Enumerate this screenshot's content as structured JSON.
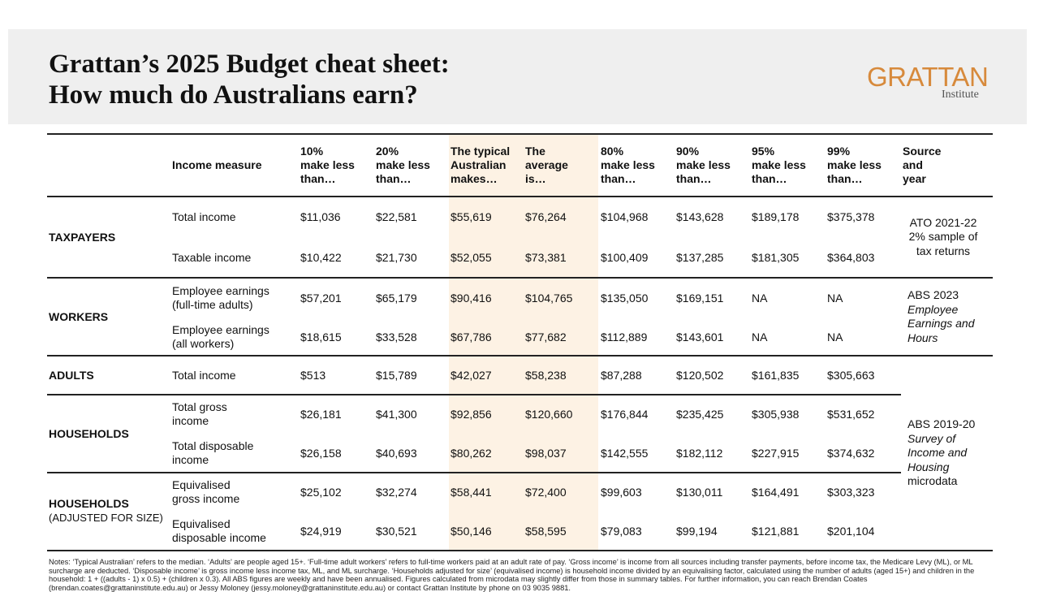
{
  "header": {
    "title_lines": [
      "Grattan’s 2025 Budget cheat sheet:",
      "How much do Australians earn?"
    ],
    "logo": {
      "name": "GRATTAN",
      "sub": "Institute"
    }
  },
  "table": {
    "columns": [
      [
        "Income measure"
      ],
      [
        "10%",
        "make less",
        "than…"
      ],
      [
        "20%",
        "make less",
        "than…"
      ],
      [
        "The typical",
        "Australian",
        "makes…"
      ],
      [
        "The",
        "average",
        "is…"
      ],
      [
        "80%",
        "make less",
        "than…"
      ],
      [
        "90%",
        "make less",
        "than…"
      ],
      [
        "95%",
        "make less",
        "than…"
      ],
      [
        "99%",
        "make less",
        "than…"
      ],
      [
        "Source",
        "and",
        "year"
      ]
    ],
    "groups": [
      {
        "label": [
          "TAXPAYERS"
        ],
        "rows": [
          {
            "measure": [
              "Total income"
            ],
            "values": [
              "$11,036",
              "$22,581",
              "$55,619",
              "$76,264",
              "$104,968",
              "$143,628",
              "$189,178",
              "$375,378"
            ]
          },
          {
            "measure": [
              "Taxable income"
            ],
            "values": [
              "$10,422",
              "$21,730",
              "$52,055",
              "$73,381",
              "$100,409",
              "$137,285",
              "$181,305",
              "$364,803"
            ]
          }
        ]
      },
      {
        "label": [
          "WORKERS"
        ],
        "rows": [
          {
            "measure": [
              "Employee earnings",
              "(full-time adults)"
            ],
            "values": [
              "$57,201",
              "$65,179",
              "$90,416",
              "$104,765",
              "$135,050",
              "$169,151",
              "NA",
              "NA"
            ]
          },
          {
            "measure": [
              "Employee earnings",
              "(all workers)"
            ],
            "values": [
              "$18,615",
              "$33,528",
              "$67,786",
              "$77,682",
              "$112,889",
              "$143,601",
              "NA",
              "NA"
            ]
          }
        ]
      },
      {
        "label": [
          "ADULTS"
        ],
        "rows": [
          {
            "measure": [
              "Total income"
            ],
            "values": [
              "$513",
              "$15,789",
              "$42,027",
              "$58,238",
              "$87,288",
              "$120,502",
              "$161,835",
              "$305,663"
            ]
          }
        ]
      },
      {
        "label": [
          "HOUSEHOLDS"
        ],
        "rows": [
          {
            "measure": [
              "Total gross",
              "income"
            ],
            "values": [
              "$26,181",
              "$41,300",
              "$92,856",
              "$120,660",
              "$176,844",
              "$235,425",
              "$305,938",
              "$531,652"
            ]
          },
          {
            "measure": [
              "Total disposable",
              "income"
            ],
            "values": [
              "$26,158",
              "$40,693",
              "$80,262",
              "$98,037",
              "$142,555",
              "$182,112",
              "$227,915",
              "$374,632"
            ]
          }
        ]
      },
      {
        "label": [
          "HOUSEHOLDS",
          "(ADJUSTED FOR SIZE)"
        ],
        "rows": [
          {
            "measure": [
              "Equivalised",
              "gross income"
            ],
            "values": [
              "$25,102",
              "$32,274",
              "$58,441",
              "$72,400",
              "$99,603",
              "$130,011",
              "$164,491",
              "$303,323"
            ]
          },
          {
            "measure": [
              "Equivalised",
              "disposable income"
            ],
            "values": [
              "$24,919",
              "$30,521",
              "$50,146",
              "$58,595",
              "$79,083",
              "$99,194",
              "$121,881",
              "$201,104"
            ]
          }
        ]
      }
    ],
    "sources": [
      {
        "lines": [
          {
            "text": "ATO 2021-22",
            "italic": false
          },
          {
            "text": "2% sample of",
            "italic": false
          },
          {
            "text": "tax returns",
            "italic": false
          }
        ]
      },
      {
        "lines": [
          {
            "text": "ABS 2023",
            "italic": false
          },
          {
            "text": "Employee",
            "italic": true
          },
          {
            "text": "Earnings and",
            "italic": true
          },
          {
            "text": "Hours",
            "italic": true
          }
        ]
      },
      {
        "lines": [
          {
            "text": "ABS 2019-20",
            "italic": false
          },
          {
            "text": "Survey of",
            "italic": true
          },
          {
            "text": "Income and",
            "italic": true
          },
          {
            "text": "Housing",
            "italic": true
          },
          {
            "text": "microdata",
            "italic": false
          }
        ]
      }
    ]
  },
  "notes": "Notes: ‘Typical Australian’ refers to the median. ‘Adults’ are people aged 15+. ‘Full-time adult workers’ refers to full-time workers paid at an adult rate of pay. ‘Gross income’ is income from all sources including transfer payments, before income tax, the Medicare Levy (ML), or ML surcharge are deducted. ‘Disposable income’ is gross income less income tax, ML, and ML surcharge. ‘Households adjusted for size’ (equivalised income) is household income divided by an equivalising factor, calculated using the number of adults (aged 15+) and children in the household: 1 + ((adults - 1) x 0.5) + (children x 0.3). All ABS figures are weekly and have been annualised. Figures calculated from microdata may slightly differ from those in summary tables. For further information, you can reach Brendan Coates (brendan.coates@grattaninstitute.edu.au) or Jessy Moloney (jessy.moloney@grattaninstitute.edu.au) or contact Grattan Institute by phone on 03 9035 9881."
}
